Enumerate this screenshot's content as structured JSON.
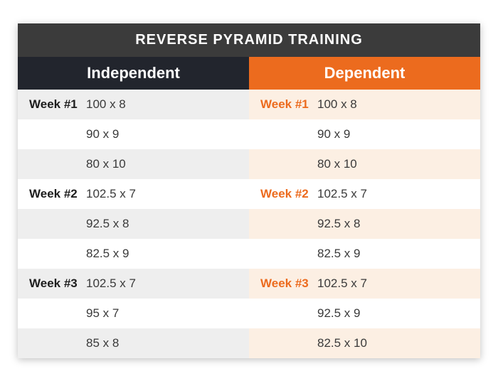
{
  "title": "REVERSE PYRAMID TRAINING",
  "columns": {
    "left": {
      "label": "Independent",
      "header_bg": "#22252d",
      "header_fg": "#ffffff",
      "row_bg_a": "#ffffff",
      "row_bg_b": "#eeeeee",
      "week_color": "#1d1d1d",
      "value_color": "#3a3a3a"
    },
    "right": {
      "label": "Dependent",
      "header_bg": "#ec6b1e",
      "header_fg": "#ffffff",
      "row_bg_a": "#ffffff",
      "row_bg_b": "#fcefe3",
      "week_color": "#ec6b1e",
      "value_color": "#3a3a3a"
    }
  },
  "title_style": {
    "bg": "#3b3b3b",
    "fg": "#ffffff",
    "fontsize": 20
  },
  "rows": [
    {
      "left_week": "Week #1",
      "left_val": "100 x 8",
      "right_week": "Week #1",
      "right_val": "100 x 8",
      "shade": "b"
    },
    {
      "left_week": "",
      "left_val": "90 x 9",
      "right_week": "",
      "right_val": "90 x 9",
      "shade": "a"
    },
    {
      "left_week": "",
      "left_val": "80 x 10",
      "right_week": "",
      "right_val": "80 x 10",
      "shade": "b"
    },
    {
      "left_week": "Week #2",
      "left_val": "102.5 x 7",
      "right_week": "Week #2",
      "right_val": "102.5 x 7",
      "shade": "a"
    },
    {
      "left_week": "",
      "left_val": "92.5 x 8",
      "right_week": "",
      "right_val": "92.5 x 8",
      "shade": "b"
    },
    {
      "left_week": "",
      "left_val": "82.5 x 9",
      "right_week": "",
      "right_val": "82.5 x 9",
      "shade": "a"
    },
    {
      "left_week": "Week #3",
      "left_val": "102.5 x 7",
      "right_week": "Week #3",
      "right_val": "102.5 x 7",
      "shade": "b"
    },
    {
      "left_week": "",
      "left_val": "95 x 7",
      "right_week": "",
      "right_val": "92.5 x 9",
      "shade": "a"
    },
    {
      "left_week": "",
      "left_val": "85 x 8",
      "right_week": "",
      "right_val": "82.5 x 10",
      "shade": "b"
    }
  ]
}
